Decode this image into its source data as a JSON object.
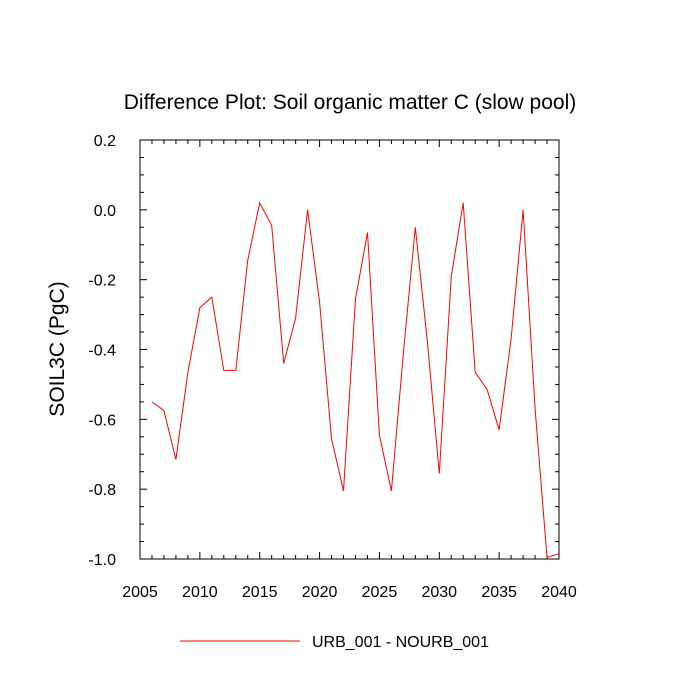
{
  "chart_data": {
    "type": "line",
    "title": "Difference Plot: Soil organic matter C (slow pool)",
    "xlabel": "",
    "ylabel": "SOIL3C  (PgC)",
    "xlim": [
      2005,
      2040
    ],
    "ylim": [
      -1.0,
      0.2
    ],
    "x_ticks": [
      2005,
      2010,
      2015,
      2020,
      2025,
      2030,
      2035,
      2040
    ],
    "x_tick_labels": [
      "2005",
      "2010",
      "2015",
      "2020",
      "2025",
      "2030",
      "2035",
      "2040"
    ],
    "y_ticks": [
      0.2,
      0.0,
      -0.2,
      -0.4,
      -0.6,
      -0.8,
      -1.0
    ],
    "y_tick_labels": [
      "0.2",
      "0.0",
      "-0.2",
      "-0.4",
      "-0.6",
      "-0.8",
      "-1.0"
    ],
    "grid": false,
    "legend_position": "bottom-center",
    "series": [
      {
        "name": "URB_001 - NOURB_001",
        "color": "#ff0000",
        "x": [
          2006,
          2007,
          2008,
          2009,
          2010,
          2011,
          2012,
          2013,
          2014,
          2015,
          2016,
          2017,
          2018,
          2019,
          2020,
          2021,
          2022,
          2023,
          2024,
          2025,
          2026,
          2027,
          2028,
          2029,
          2030,
          2031,
          2032,
          2033,
          2034,
          2035,
          2036,
          2037,
          2038,
          2039,
          2040
        ],
        "y": [
          -0.55,
          -0.575,
          -0.715,
          -0.465,
          -0.28,
          -0.25,
          -0.46,
          -0.46,
          -0.145,
          0.02,
          -0.045,
          -0.44,
          -0.31,
          0.0,
          -0.265,
          -0.655,
          -0.805,
          -0.255,
          -0.065,
          -0.645,
          -0.805,
          -0.41,
          -0.05,
          -0.375,
          -0.755,
          -0.19,
          0.02,
          -0.465,
          -0.515,
          -0.63,
          -0.37,
          0.0,
          -0.57,
          -0.995,
          -0.985
        ]
      }
    ]
  }
}
